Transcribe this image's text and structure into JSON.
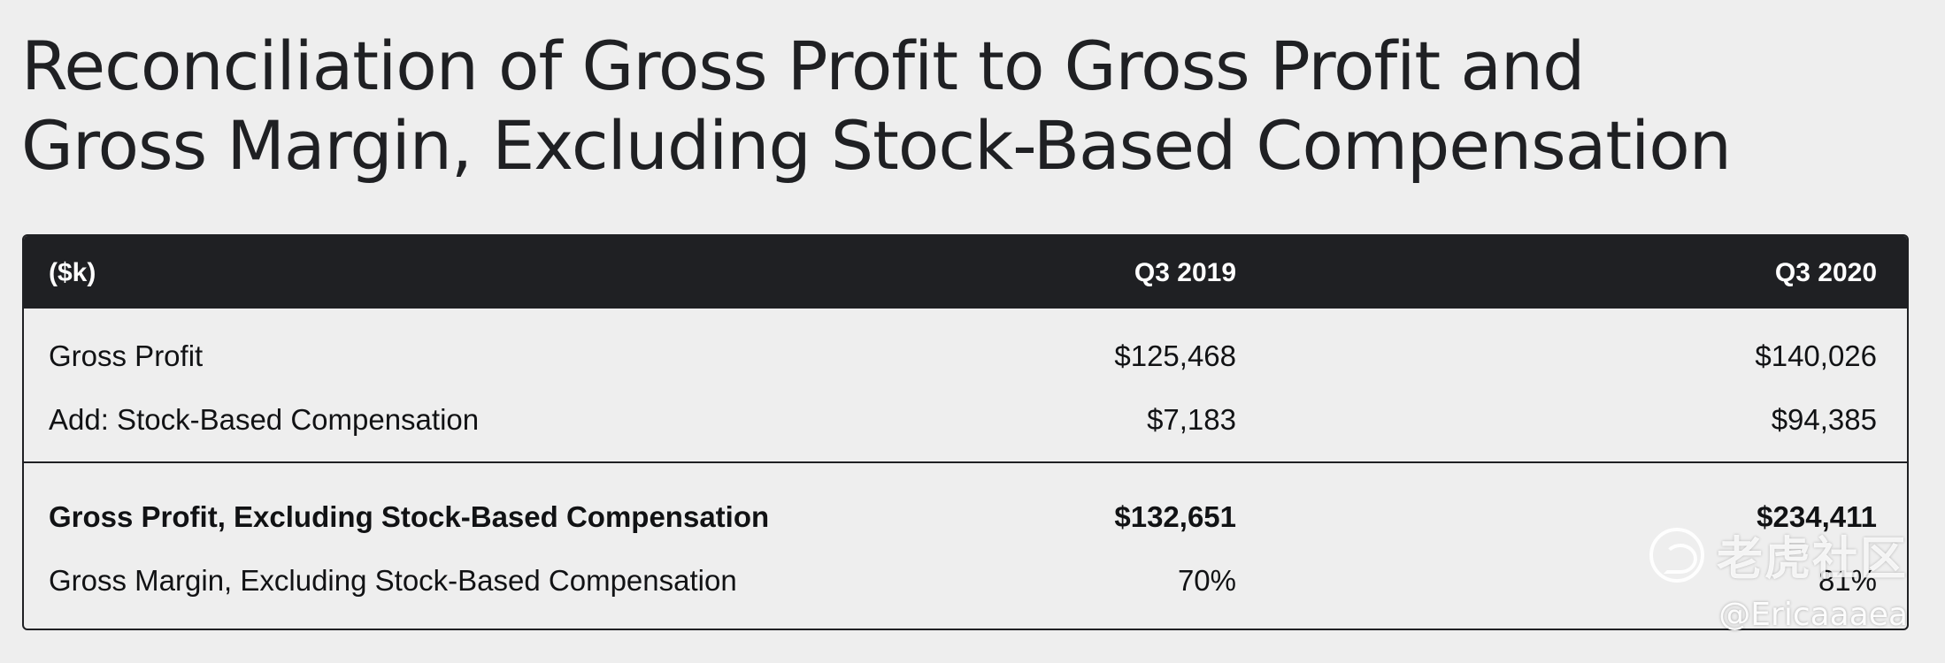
{
  "title": {
    "line1": "Reconciliation of Gross Profit to Gross Profit and",
    "line2": "Gross Margin, Excluding Stock-Based Compensation"
  },
  "table": {
    "columns": [
      "($k)",
      "Q3 2019",
      "Q3 2020"
    ],
    "rows": [
      {
        "label": "Gross Profit",
        "q3_2019": "$125,468",
        "q3_2020": "$140,026",
        "bold": false
      },
      {
        "label": "Add: Stock-Based Compensation",
        "q3_2019": "$7,183",
        "q3_2020": "$94,385",
        "bold": false
      },
      {
        "label": "Gross Profit, Excluding Stock-Based Compensation",
        "q3_2019": "$132,651",
        "q3_2020": "$234,411",
        "bold": true
      },
      {
        "label": "Gross Margin, Excluding Stock-Based Compensation",
        "q3_2019": "70%",
        "q3_2020": "81%",
        "bold": false
      }
    ]
  },
  "watermark": {
    "brand": "老虎社区",
    "handle": "@Ericaaaea"
  }
}
